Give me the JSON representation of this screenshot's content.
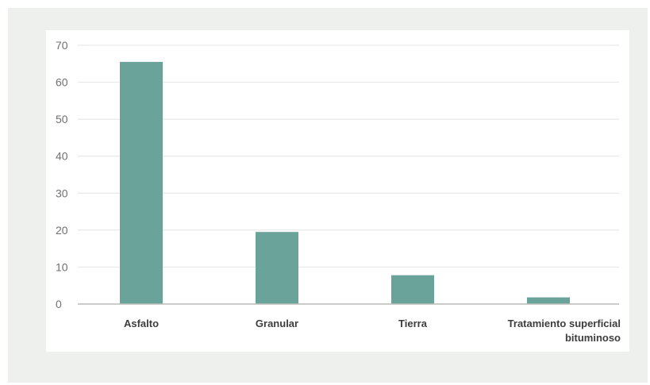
{
  "chart_data": {
    "type": "bar",
    "categories": [
      [
        "Asfalto"
      ],
      [
        "Granular"
      ],
      [
        "Tierra"
      ],
      [
        "Tratamiento superficial",
        "bituminoso"
      ]
    ],
    "values": [
      65.5,
      19.5,
      7.8,
      1.8
    ],
    "ylim": [
      0,
      70
    ],
    "yticks": [
      0,
      10,
      20,
      30,
      40,
      50,
      60,
      70
    ],
    "title": "",
    "xlabel": "",
    "ylabel": "",
    "grid": true,
    "bar_color": "#6aa39a",
    "grid_color": "#e2e4e1",
    "axis_color": "#b9bcb8"
  }
}
